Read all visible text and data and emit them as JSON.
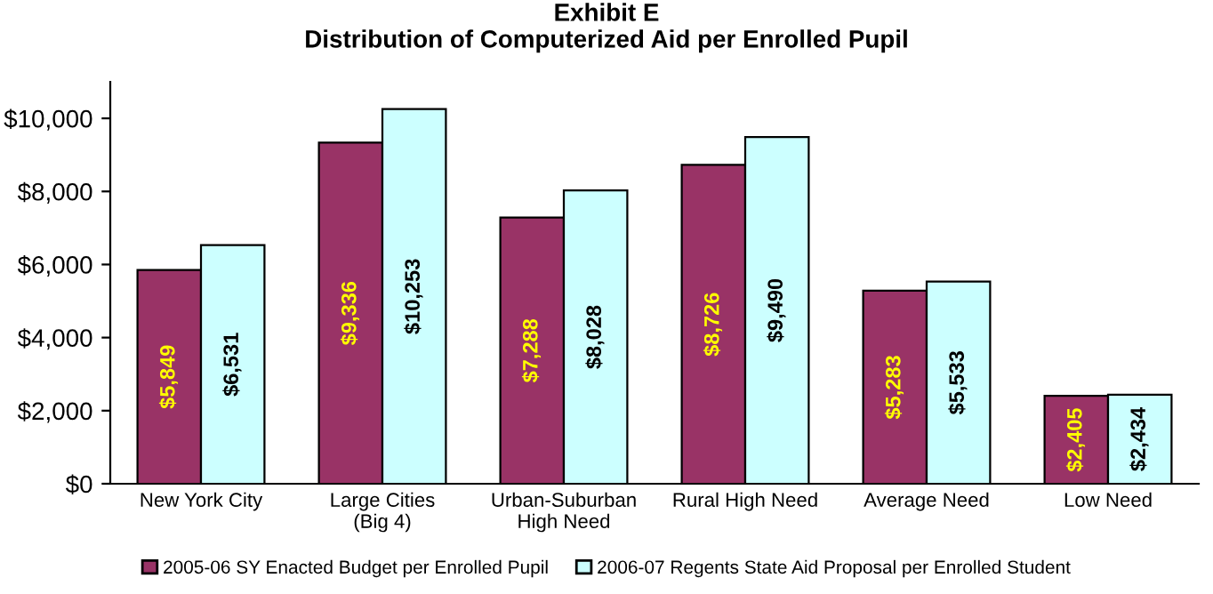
{
  "chart_data": {
    "type": "bar",
    "title": "Exhibit E",
    "subtitle": "Distribution of Computerized Aid per Enrolled Pupil",
    "categories": [
      "New York City",
      "Large Cities\n(Big 4)",
      "Urban-Suburban\nHigh Need",
      "Rural High Need",
      "Average Need",
      "Low Need"
    ],
    "series": [
      {
        "name": "2005-06 SY Enacted Budget per Enrolled Pupil",
        "color": "#993366",
        "values": [
          5849,
          9336,
          7288,
          8726,
          5283,
          2405
        ],
        "value_labels": [
          "$5,849",
          "$9,336",
          "$7,288",
          "$8,726",
          "$5,283",
          "$2,405"
        ]
      },
      {
        "name": "2006-07 Regents State Aid Proposal per Enrolled Student",
        "color": "#ccffff",
        "values": [
          6531,
          10253,
          8028,
          9490,
          5533,
          2434
        ],
        "value_labels": [
          "$6,531",
          "$10,253",
          "$8,028",
          "$9,490",
          "$5,533",
          "$2,434"
        ]
      }
    ],
    "ylim": [
      0,
      11000
    ],
    "yticks": [
      {
        "value": 0,
        "label": "$0"
      },
      {
        "value": 2000,
        "label": "$2,000"
      },
      {
        "value": 4000,
        "label": "$4,000"
      },
      {
        "value": 6000,
        "label": "$6,000"
      },
      {
        "value": 8000,
        "label": "$8,000"
      },
      {
        "value": 10000,
        "label": "$10,000"
      }
    ],
    "grid": false,
    "legend": "bottom"
  }
}
